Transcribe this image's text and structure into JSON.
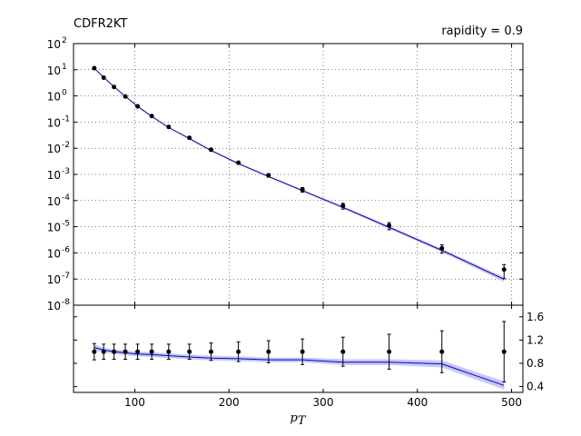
{
  "chart_data": {
    "type": "line",
    "title_left": "CDFR2KT",
    "title_right": "rapidity = 0.9",
    "xlabel": "p_T",
    "xlim": [
      35,
      512
    ],
    "x_ticks": [
      100,
      200,
      300,
      400,
      500
    ],
    "x_tick_labels": [
      "100",
      "200",
      "300",
      "400",
      "500"
    ],
    "top_panel": {
      "yscale": "log",
      "ylim_exp": [
        -8,
        2
      ],
      "y_tick_exponents": [
        -8,
        -7,
        -6,
        -5,
        -4,
        -3,
        -2,
        -1,
        0,
        1,
        2
      ],
      "y_tick_base": "10",
      "grid": true,
      "series": [
        {
          "role": "data",
          "x": [
            57,
            67,
            78,
            90,
            103,
            118,
            136,
            158,
            181,
            210,
            242,
            278,
            321,
            370,
            426,
            492
          ],
          "y": [
            11.5,
            5.0,
            2.2,
            0.95,
            0.4,
            0.17,
            0.065,
            0.025,
            0.0088,
            0.0028,
            0.00092,
            0.00026,
            6.3e-05,
            1.1e-05,
            1.5e-06,
            2.3e-07
          ],
          "err_frac": [
            0.08,
            0.08,
            0.08,
            0.08,
            0.08,
            0.1,
            0.1,
            0.1,
            0.12,
            0.12,
            0.15,
            0.2,
            0.25,
            0.3,
            0.35,
            0.55
          ]
        },
        {
          "role": "theory",
          "color": "#0000dd",
          "band_color": "#9999ff",
          "x": [
            57,
            67,
            78,
            90,
            103,
            118,
            136,
            158,
            181,
            210,
            242,
            278,
            321,
            370,
            426,
            492
          ],
          "y": [
            11.5,
            5.1,
            2.25,
            0.96,
            0.4,
            0.165,
            0.062,
            0.0235,
            0.0082,
            0.0026,
            0.00083,
            0.00024,
            5.5e-05,
            9.5e-06,
            1.25e-06,
            9.8e-08
          ],
          "band_frac": [
            0.05,
            0.05,
            0.05,
            0.05,
            0.05,
            0.06,
            0.06,
            0.07,
            0.07,
            0.08,
            0.08,
            0.09,
            0.1,
            0.12,
            0.14,
            0.2
          ]
        }
      ]
    },
    "ratio_panel": {
      "ylim": [
        0.3,
        1.8
      ],
      "y_ticks": [
        0.4,
        0.8,
        1.2,
        1.6
      ],
      "y_tick_labels": [
        "0.4",
        "0.8",
        "1.2",
        "1.6"
      ],
      "y_axis_side": "right",
      "series": [
        {
          "role": "data",
          "x": [
            57,
            67,
            78,
            90,
            103,
            118,
            136,
            158,
            181,
            210,
            242,
            278,
            321,
            370,
            426,
            492
          ],
          "y": [
            1.0,
            1.0,
            1.0,
            1.0,
            1.0,
            1.0,
            1.0,
            1.0,
            1.0,
            1.0,
            1.0,
            1.0,
            1.0,
            1.0,
            1.0,
            1.0
          ],
          "err": [
            0.14,
            0.13,
            0.13,
            0.13,
            0.13,
            0.13,
            0.13,
            0.13,
            0.15,
            0.17,
            0.19,
            0.22,
            0.25,
            0.3,
            0.36,
            0.52
          ]
        },
        {
          "role": "theory",
          "color": "#0000dd",
          "band_color": "#9999ff",
          "x": [
            57,
            67,
            78,
            90,
            103,
            118,
            136,
            158,
            181,
            210,
            242,
            278,
            321,
            370,
            426,
            492
          ],
          "y": [
            1.07,
            1.03,
            1.0,
            0.98,
            0.96,
            0.95,
            0.93,
            0.91,
            0.89,
            0.88,
            0.86,
            0.86,
            0.82,
            0.82,
            0.79,
            0.42
          ],
          "band": [
            0.05,
            0.04,
            0.04,
            0.04,
            0.04,
            0.04,
            0.04,
            0.04,
            0.04,
            0.04,
            0.04,
            0.04,
            0.05,
            0.05,
            0.06,
            0.07
          ]
        }
      ]
    }
  }
}
